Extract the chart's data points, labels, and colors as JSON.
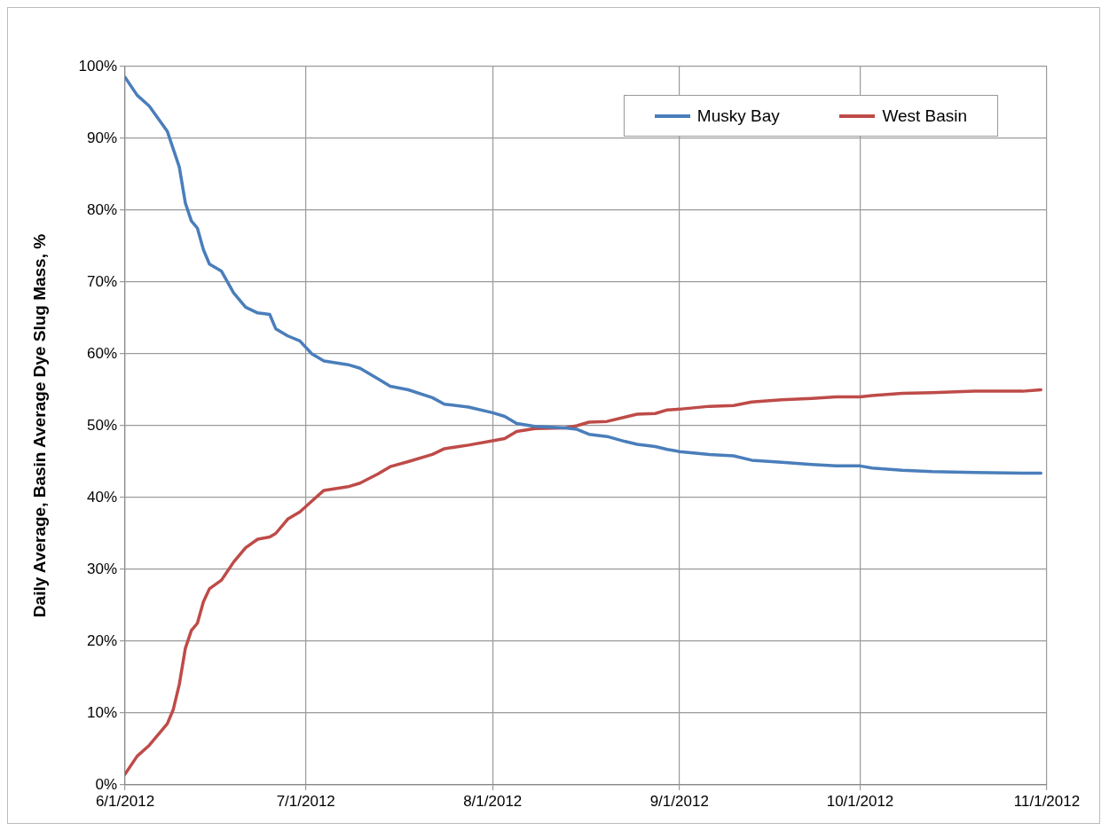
{
  "chart_data": {
    "type": "line",
    "ylabel": "Daily Average, Basin Average Dye Slug Mass, %",
    "x": [
      "2012-06-01",
      "2012-06-03",
      "2012-06-05",
      "2012-06-08",
      "2012-06-09",
      "2012-06-10",
      "2012-06-11",
      "2012-06-12",
      "2012-06-13",
      "2012-06-14",
      "2012-06-15",
      "2012-06-17",
      "2012-06-19",
      "2012-06-21",
      "2012-06-23",
      "2012-06-25",
      "2012-06-26",
      "2012-06-28",
      "2012-06-30",
      "2012-07-02",
      "2012-07-04",
      "2012-07-08",
      "2012-07-10",
      "2012-07-13",
      "2012-07-15",
      "2012-07-18",
      "2012-07-22",
      "2012-07-24",
      "2012-07-28",
      "2012-08-01",
      "2012-08-03",
      "2012-08-05",
      "2012-08-08",
      "2012-08-13",
      "2012-08-15",
      "2012-08-17",
      "2012-08-20",
      "2012-08-23",
      "2012-08-25",
      "2012-08-28",
      "2012-08-30",
      "2012-09-01",
      "2012-09-06",
      "2012-09-10",
      "2012-09-13",
      "2012-09-18",
      "2012-09-23",
      "2012-09-27",
      "2012-10-01",
      "2012-10-03",
      "2012-10-08",
      "2012-10-13",
      "2012-10-20",
      "2012-10-28",
      "2012-10-31"
    ],
    "series": [
      {
        "name": "Musky Bay",
        "color": "#4a7ebb",
        "values": [
          98.5,
          96,
          94.5,
          91,
          88.5,
          86,
          81,
          78.5,
          77.5,
          74.5,
          72.5,
          71.5,
          68.5,
          66.5,
          65.7,
          65.5,
          63.5,
          62.5,
          61.8,
          60,
          59,
          58.5,
          58,
          56.5,
          55.5,
          55,
          53.9,
          53,
          52.6,
          51.8,
          51.3,
          50.3,
          49.9,
          49.7,
          49.5,
          48.8,
          48.5,
          47.8,
          47.4,
          47.1,
          46.7,
          46.4,
          46,
          45.8,
          45.2,
          44.9,
          44.6,
          44.4,
          44.4,
          44.1,
          43.8,
          43.6,
          43.5,
          43.4,
          43.4
        ]
      },
      {
        "name": "West Basin",
        "color": "#be4b48",
        "values": [
          1.5,
          4,
          5.5,
          8.5,
          10.5,
          14,
          19,
          21.5,
          22.5,
          25.5,
          27.3,
          28.5,
          31,
          33,
          34.2,
          34.5,
          35,
          37,
          38,
          39.5,
          41,
          41.5,
          42,
          43.3,
          44.3,
          45,
          46,
          46.8,
          47.3,
          47.9,
          48.2,
          49.2,
          49.6,
          49.7,
          50,
          50.5,
          50.6,
          51.2,
          51.6,
          51.7,
          52.2,
          52.3,
          52.7,
          52.8,
          53.3,
          53.6,
          53.8,
          54,
          54,
          54.2,
          54.5,
          54.6,
          54.8,
          54.8,
          55
        ]
      }
    ],
    "xlim": [
      "2012-06-01",
      "2012-11-01"
    ],
    "xticks": [
      {
        "value": "2012-06-01",
        "label": "6/1/2012"
      },
      {
        "value": "2012-07-01",
        "label": "7/1/2012"
      },
      {
        "value": "2012-08-01",
        "label": "8/1/2012"
      },
      {
        "value": "2012-09-01",
        "label": "9/1/2012"
      },
      {
        "value": "2012-10-01",
        "label": "10/1/2012"
      },
      {
        "value": "2012-11-01",
        "label": "11/1/2012"
      }
    ],
    "ylim": [
      0,
      100
    ],
    "yticks": [
      {
        "value": 0,
        "label": "0%"
      },
      {
        "value": 10,
        "label": "10%"
      },
      {
        "value": 20,
        "label": "20%"
      },
      {
        "value": 30,
        "label": "30%"
      },
      {
        "value": 40,
        "label": "40%"
      },
      {
        "value": 50,
        "label": "50%"
      },
      {
        "value": 60,
        "label": "60%"
      },
      {
        "value": 70,
        "label": "70%"
      },
      {
        "value": 80,
        "label": "80%"
      },
      {
        "value": 90,
        "label": "90%"
      },
      {
        "value": 100,
        "label": "100%"
      }
    ],
    "grid": true,
    "legend": "top right",
    "marker": "none",
    "line_style": "solid"
  }
}
